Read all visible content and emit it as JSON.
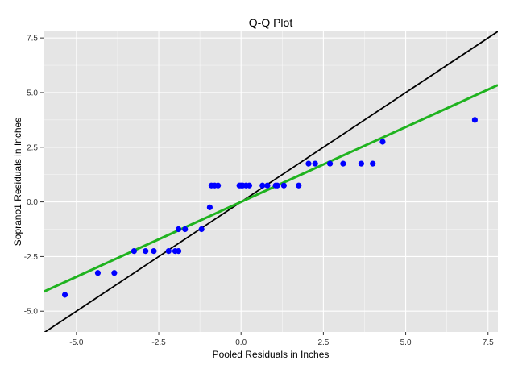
{
  "chart_data": {
    "type": "scatter",
    "title": "Q-Q Plot",
    "xlabel": "Pooled Residuals in Inches",
    "ylabel": "Soprano1 Residuals in Inches",
    "xlim": [
      -6.0,
      7.8
    ],
    "ylim": [
      -5.95,
      7.8
    ],
    "xticks": [
      -5.0,
      -2.5,
      0.0,
      2.5,
      5.0,
      7.5
    ],
    "xtick_labels": [
      "-5.0",
      "-2.5",
      "0.0",
      "2.5",
      "5.0",
      "7.5"
    ],
    "yticks": [
      -5.0,
      -2.5,
      0.0,
      2.5,
      5.0,
      7.5
    ],
    "ytick_labels": [
      "-5.0",
      "-2.5",
      "0.0",
      "2.5",
      "5.0",
      "7.5"
    ],
    "grid": true,
    "colors": {
      "panel": "#e5e5e5",
      "grid": "#ffffff",
      "points": "#0000ff",
      "identity_line": "#000000",
      "fit_line": "#1fb31f"
    },
    "points": [
      {
        "x": -5.35,
        "y": -4.25
      },
      {
        "x": -4.35,
        "y": -3.25
      },
      {
        "x": -3.85,
        "y": -3.25
      },
      {
        "x": -3.25,
        "y": -2.25
      },
      {
        "x": -2.9,
        "y": -2.25
      },
      {
        "x": -2.65,
        "y": -2.25
      },
      {
        "x": -2.2,
        "y": -2.25
      },
      {
        "x": -2.0,
        "y": -2.25
      },
      {
        "x": -1.9,
        "y": -2.25
      },
      {
        "x": -1.9,
        "y": -1.25
      },
      {
        "x": -1.7,
        "y": -1.25
      },
      {
        "x": -1.2,
        "y": -1.25
      },
      {
        "x": -0.95,
        "y": -0.25
      },
      {
        "x": -0.9,
        "y": 0.75
      },
      {
        "x": -0.8,
        "y": 0.75
      },
      {
        "x": -0.7,
        "y": 0.75
      },
      {
        "x": -0.05,
        "y": 0.75
      },
      {
        "x": 0.0,
        "y": 0.75
      },
      {
        "x": 0.05,
        "y": 0.75
      },
      {
        "x": 0.15,
        "y": 0.75
      },
      {
        "x": 0.25,
        "y": 0.75
      },
      {
        "x": 0.65,
        "y": 0.75
      },
      {
        "x": 0.8,
        "y": 0.75
      },
      {
        "x": 1.05,
        "y": 0.75
      },
      {
        "x": 1.1,
        "y": 0.75
      },
      {
        "x": 1.3,
        "y": 0.75
      },
      {
        "x": 1.75,
        "y": 0.75
      },
      {
        "x": 2.05,
        "y": 1.75
      },
      {
        "x": 2.25,
        "y": 1.75
      },
      {
        "x": 2.7,
        "y": 1.75
      },
      {
        "x": 3.1,
        "y": 1.75
      },
      {
        "x": 3.65,
        "y": 1.75
      },
      {
        "x": 4.0,
        "y": 1.75
      },
      {
        "x": 4.3,
        "y": 2.75
      },
      {
        "x": 7.1,
        "y": 3.75
      }
    ],
    "lines": [
      {
        "kind": "identity",
        "slope": 1.0,
        "intercept": 0.0
      },
      {
        "kind": "fit",
        "slope": 0.685,
        "intercept": 0.0
      }
    ]
  }
}
